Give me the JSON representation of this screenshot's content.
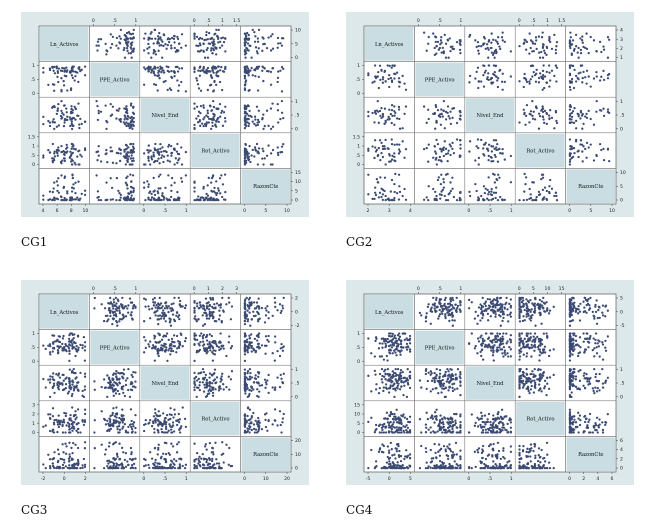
{
  "accent_color": "#3b4a73",
  "panel_background": "#dce8ea",
  "diag_background": "#c9dde2",
  "chart_data": [
    {
      "type": "scatter-matrix",
      "caption": "CG1",
      "variables": [
        "Ln_Activos",
        "PPE_Activo",
        "Nivel_End",
        "Rot_Activo",
        "RazonCte"
      ],
      "top_ticks": [
        [],
        [
          "0",
          ".5",
          "1"
        ],
        [],
        [
          "0",
          ".5",
          "1",
          "1.5"
        ],
        []
      ],
      "right_ticks": [
        [
          "10",
          "5",
          "0"
        ],
        [],
        [
          "1",
          ".5",
          "0"
        ],
        [],
        [
          "15",
          "10",
          "5",
          "0"
        ]
      ],
      "left_ticks": [
        [],
        [
          "1",
          ".5",
          "0"
        ],
        [],
        [
          "1.5",
          "1",
          ".5",
          "0"
        ],
        []
      ],
      "bottom_ticks": [
        [
          "4",
          "6",
          "8",
          "10"
        ],
        [],
        [
          "0",
          ".5",
          "1"
        ],
        [],
        [
          "0",
          "5",
          "10"
        ]
      ]
    },
    {
      "type": "scatter-matrix",
      "caption": "CG2",
      "variables": [
        "Ln_Activos",
        "PPE_Activo",
        "Nivel_End",
        "Rot_Activo",
        "RazonCte"
      ],
      "top_ticks": [
        [],
        [
          "0",
          ".5",
          "1"
        ],
        [],
        [
          "0",
          ".5",
          "1",
          "1.5"
        ],
        []
      ],
      "right_ticks": [
        [
          "4",
          "3",
          "2",
          "1"
        ],
        [],
        [
          "1",
          ".5",
          "0"
        ],
        [],
        [
          "10",
          "5",
          "0"
        ]
      ],
      "left_ticks": [
        [],
        [
          "1",
          ".5",
          "0"
        ],
        [],
        [
          "1.5",
          "1",
          ".5",
          "0"
        ],
        []
      ],
      "bottom_ticks": [
        [
          "2",
          "3",
          "4"
        ],
        [],
        [
          "0",
          ".5",
          "1"
        ],
        [],
        [
          "0",
          "5",
          "10"
        ]
      ]
    },
    {
      "type": "scatter-matrix",
      "caption": "CG3",
      "variables": [
        "Ln_Activos",
        "PPE_Activo",
        "Nivel_End",
        "Rot_Activo",
        "RazonCte"
      ],
      "top_ticks": [
        [],
        [
          "0",
          ".5",
          "1"
        ],
        [],
        [
          "0",
          "1",
          "2",
          "3"
        ],
        []
      ],
      "right_ticks": [
        [
          "2",
          "0",
          "-2"
        ],
        [],
        [
          "1",
          ".5",
          "0"
        ],
        [],
        [
          "20",
          "10",
          "0"
        ]
      ],
      "left_ticks": [
        [],
        [
          "1",
          ".5",
          "0"
        ],
        [],
        [
          "3",
          "2",
          "1",
          "0"
        ],
        []
      ],
      "bottom_ticks": [
        [
          "-2",
          "0",
          "2"
        ],
        [],
        [
          "0",
          ".5",
          "1"
        ],
        [],
        [
          "0",
          "10",
          "20"
        ]
      ]
    },
    {
      "type": "scatter-matrix",
      "caption": "CG4",
      "variables": [
        "Ln_Activos",
        "PPE_Activo",
        "Nivel_End",
        "Rot_Activo",
        "RazonCte"
      ],
      "top_ticks": [
        [],
        [
          "0",
          ".5",
          "1"
        ],
        [],
        [
          "0",
          "5",
          "10",
          "15"
        ],
        []
      ],
      "right_ticks": [
        [
          "5",
          "0",
          "-5"
        ],
        [],
        [
          "1",
          ".5",
          "0"
        ],
        [],
        [
          "6",
          "4",
          "2",
          "0"
        ]
      ],
      "left_ticks": [
        [],
        [
          "1",
          ".5",
          "0"
        ],
        [],
        [
          "15",
          "10",
          "5",
          "0"
        ],
        []
      ],
      "bottom_ticks": [
        [
          "-5",
          "0",
          "5"
        ],
        [],
        [
          "0",
          ".5",
          "1"
        ],
        [],
        [
          "0",
          "2",
          "4",
          "6"
        ]
      ]
    }
  ]
}
